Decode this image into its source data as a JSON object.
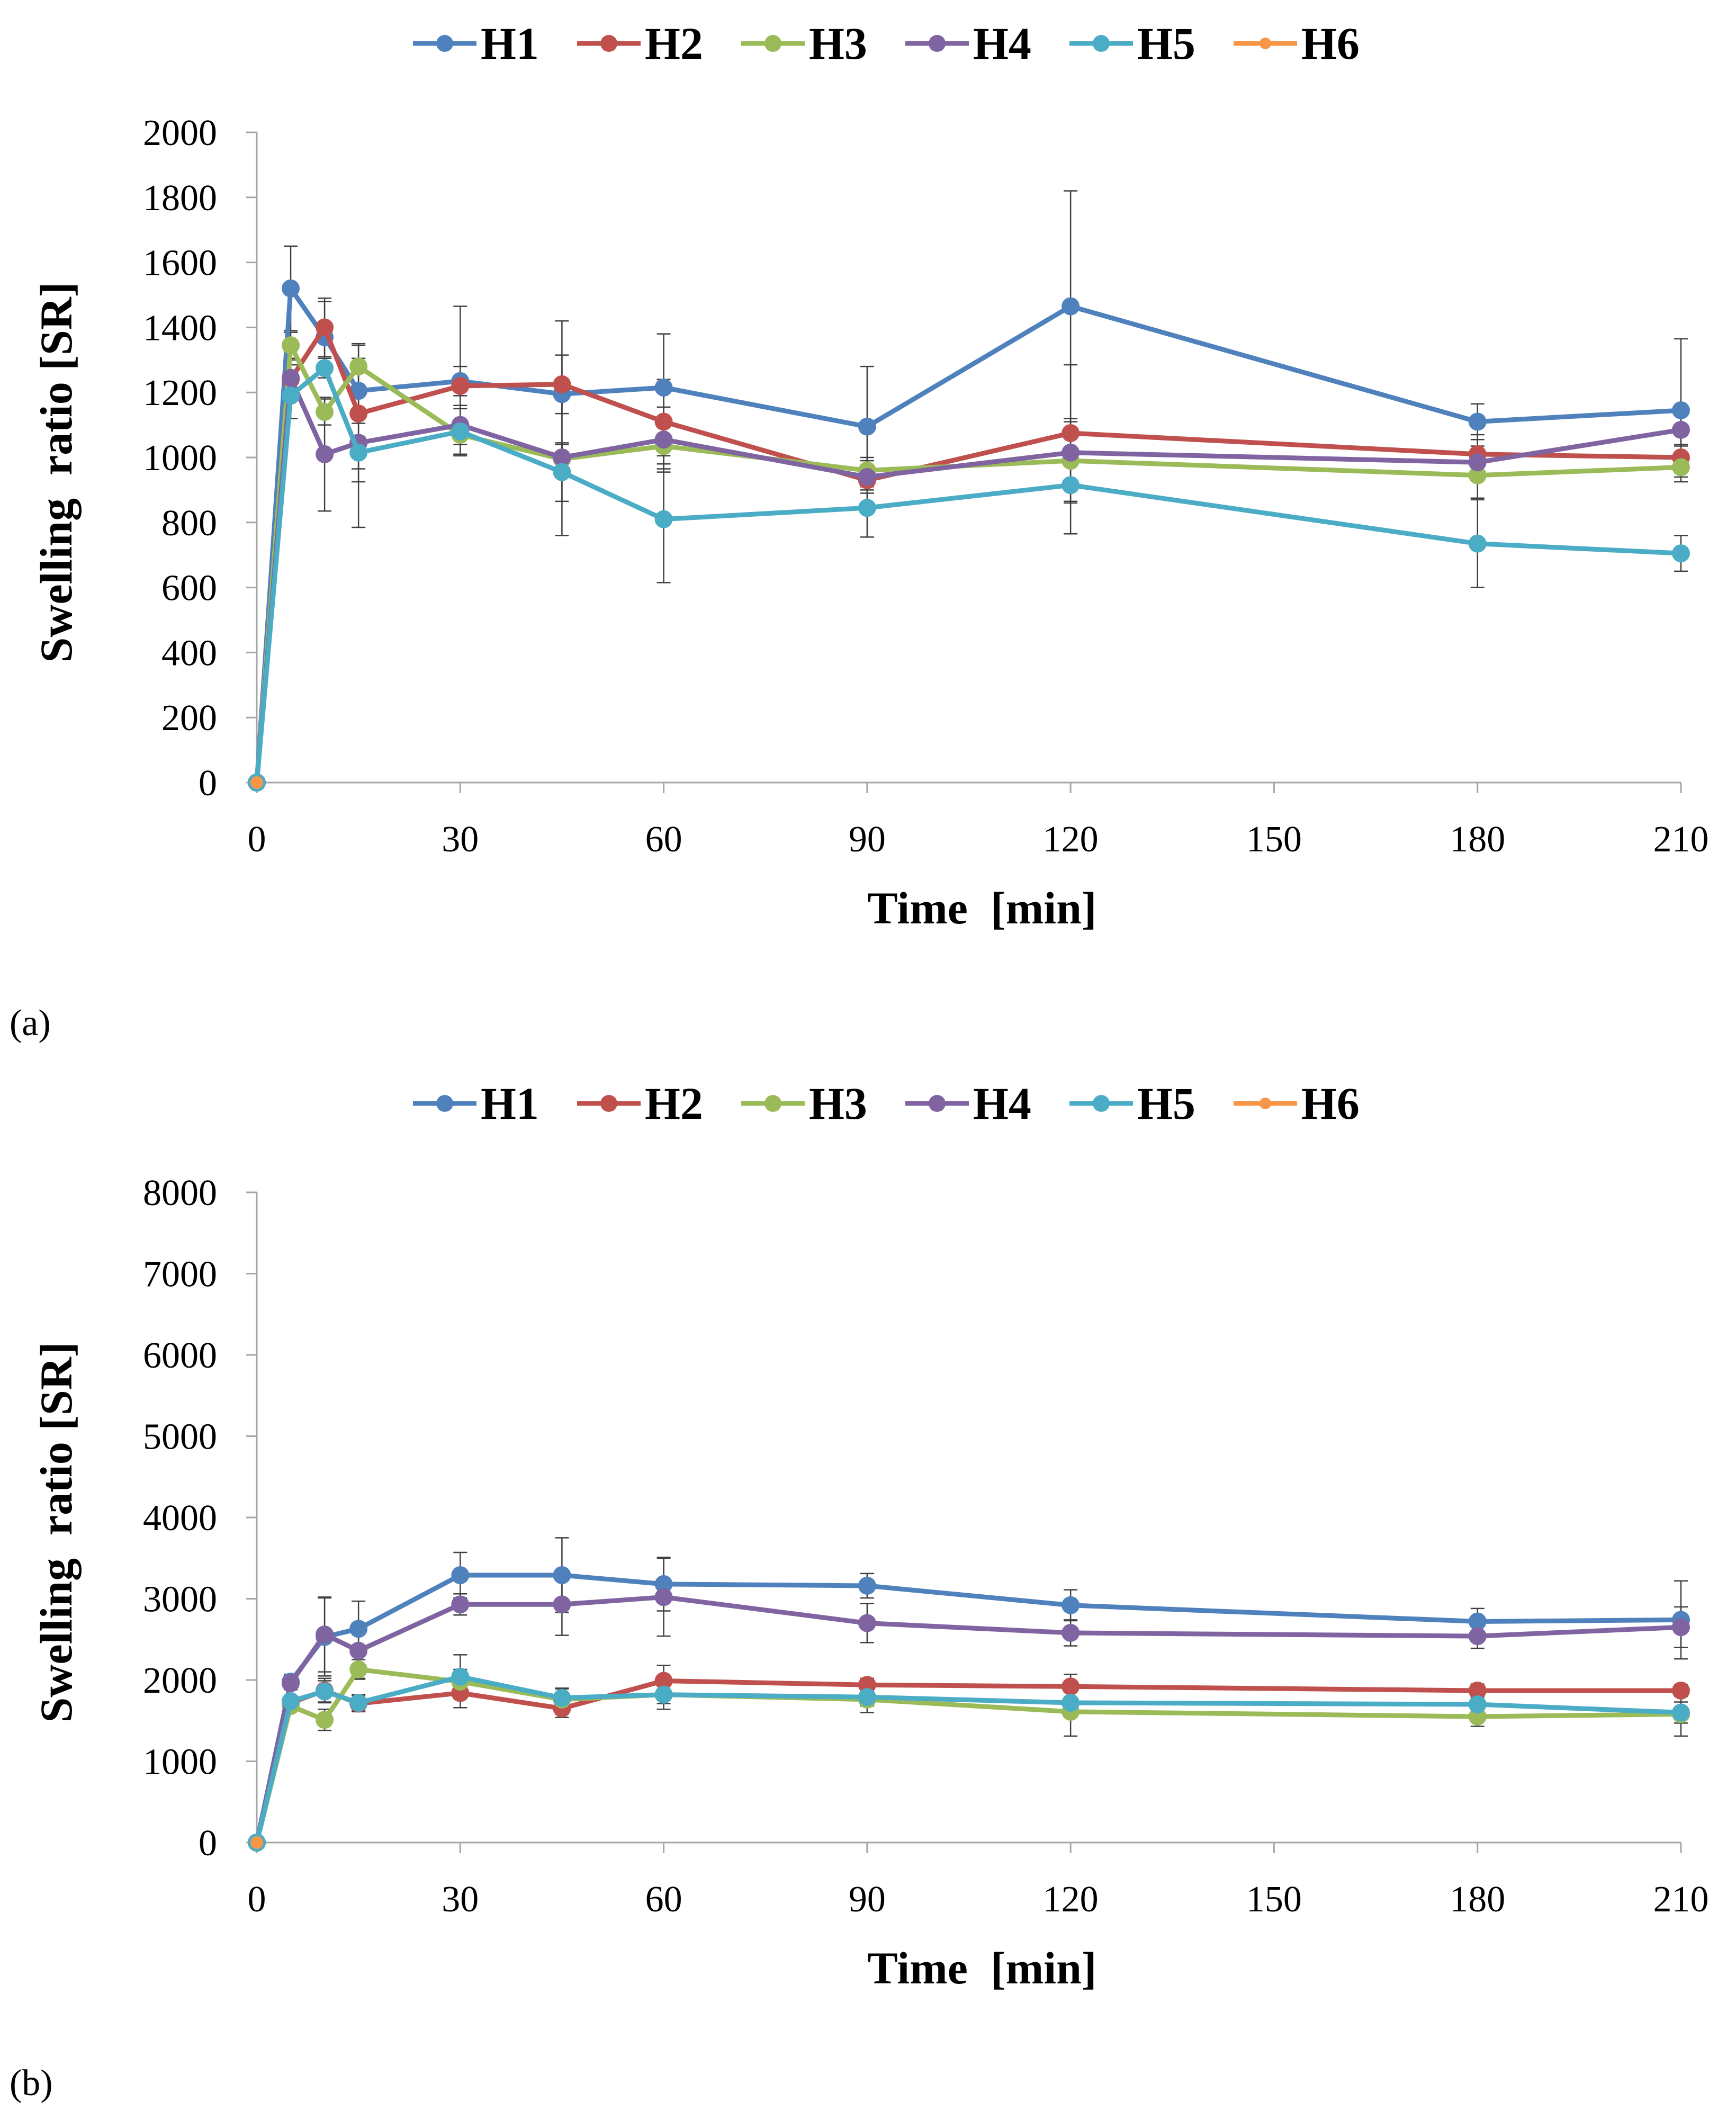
{
  "chart_data": [
    {
      "type": "line",
      "panel_label": "(a)",
      "title": "",
      "xlabel": "Time  [min]",
      "ylabel": "Swelling  ratio [SR]",
      "xlim": [
        0,
        210
      ],
      "ylim": [
        0,
        2000
      ],
      "xticks": [
        0,
        30,
        60,
        90,
        120,
        150,
        180,
        210
      ],
      "yticks": [
        0,
        200,
        400,
        600,
        800,
        1000,
        1200,
        1400,
        1600,
        1800,
        2000
      ],
      "legend_position": "top",
      "x": [
        0,
        5,
        10,
        15,
        30,
        45,
        60,
        90,
        120,
        180,
        210
      ],
      "series": [
        {
          "name": "H1",
          "color": "#4f81bd",
          "values": [
            0,
            1520,
            1370,
            1205,
            1235,
            1195,
            1215,
            1095,
            1465,
            1110,
            1145
          ],
          "errors": [
            0,
            130,
            110,
            100,
            230,
            225,
            165,
            185,
            355,
            55,
            220
          ]
        },
        {
          "name": "H2",
          "color": "#c0504d",
          "values": [
            0,
            1240,
            1400,
            1135,
            1220,
            1225,
            1110,
            930,
            1075,
            1010,
            1000
          ],
          "errors": [
            0,
            60,
            90,
            210,
            60,
            90,
            130,
            30,
            210,
            60,
            40
          ]
        },
        {
          "name": "H3",
          "color": "#9bbb59",
          "values": [
            0,
            1345,
            1140,
            1280,
            1070,
            995,
            1035,
            960,
            990,
            945,
            970
          ],
          "errors": [
            0,
            40,
            40,
            70,
            30,
            45,
            70,
            40,
            130,
            70,
            30
          ]
        },
        {
          "name": "H4",
          "color": "#8064a2",
          "values": [
            0,
            1245,
            1010,
            1045,
            1100,
            1000,
            1055,
            940,
            1015,
            985,
            1085
          ],
          "errors": [
            0,
            40,
            175,
            260,
            90,
            240,
            100,
            50,
            105,
            50,
            50
          ]
        },
        {
          "name": "H5",
          "color": "#4bacc6",
          "values": [
            0,
            1190,
            1275,
            1015,
            1080,
            955,
            810,
            845,
            915,
            735,
            705
          ],
          "errors": [
            0,
            70,
            30,
            50,
            70,
            90,
            195,
            90,
            150,
            135,
            55
          ]
        },
        {
          "name": "H6",
          "color": "#f79646",
          "values": [
            0,
            null,
            null,
            null,
            null,
            null,
            null,
            null,
            null,
            null,
            null
          ],
          "errors": [
            0,
            null,
            null,
            null,
            null,
            null,
            null,
            null,
            null,
            null,
            null
          ]
        }
      ]
    },
    {
      "type": "line",
      "panel_label": "(b)",
      "title": "",
      "xlabel": "Time  [min]",
      "ylabel": "Swelling  ratio [SR]",
      "xlim": [
        0,
        210
      ],
      "ylim": [
        0,
        8000
      ],
      "xticks": [
        0,
        30,
        60,
        90,
        120,
        150,
        180,
        210
      ],
      "yticks": [
        0,
        1000,
        2000,
        3000,
        4000,
        5000,
        6000,
        7000,
        8000
      ],
      "legend_position": "top",
      "x": [
        0,
        5,
        10,
        15,
        30,
        45,
        60,
        90,
        120,
        180,
        210
      ],
      "series": [
        {
          "name": "H1",
          "color": "#4f81bd",
          "values": [
            0,
            1980,
            2530,
            2630,
            3290,
            3290,
            3180,
            3160,
            2920,
            2720,
            2740
          ],
          "errors": [
            0,
            90,
            480,
            340,
            280,
            460,
            330,
            150,
            190,
            160,
            480
          ]
        },
        {
          "name": "H2",
          "color": "#c0504d",
          "values": [
            0,
            1720,
            1870,
            1710,
            1840,
            1650,
            1990,
            1940,
            1920,
            1870,
            1870
          ],
          "errors": [
            0,
            80,
            150,
            100,
            180,
            110,
            190,
            80,
            150,
            80,
            70
          ]
        },
        {
          "name": "H3",
          "color": "#9bbb59",
          "values": [
            0,
            1680,
            1510,
            2130,
            1980,
            1760,
            1820,
            1760,
            1610,
            1550,
            1580
          ],
          "errors": [
            0,
            60,
            130,
            120,
            150,
            130,
            110,
            160,
            300,
            120,
            270
          ]
        },
        {
          "name": "H4",
          "color": "#8064a2",
          "values": [
            0,
            1960,
            2560,
            2360,
            2930,
            2930,
            3020,
            2700,
            2580,
            2540,
            2650
          ],
          "errors": [
            0,
            80,
            460,
            340,
            130,
            380,
            480,
            240,
            160,
            150,
            250
          ]
        },
        {
          "name": "H5",
          "color": "#4bacc6",
          "values": [
            0,
            1740,
            1860,
            1720,
            2040,
            1780,
            1820,
            1790,
            1720,
            1700,
            1600
          ],
          "errors": [
            0,
            60,
            130,
            100,
            270,
            120,
            180,
            110,
            130,
            100,
            130
          ]
        },
        {
          "name": "H6",
          "color": "#f79646",
          "values": [
            0,
            null,
            null,
            null,
            null,
            null,
            null,
            null,
            null,
            null,
            null
          ],
          "errors": [
            0,
            null,
            null,
            null,
            null,
            null,
            null,
            null,
            null,
            null,
            null
          ]
        }
      ]
    }
  ]
}
